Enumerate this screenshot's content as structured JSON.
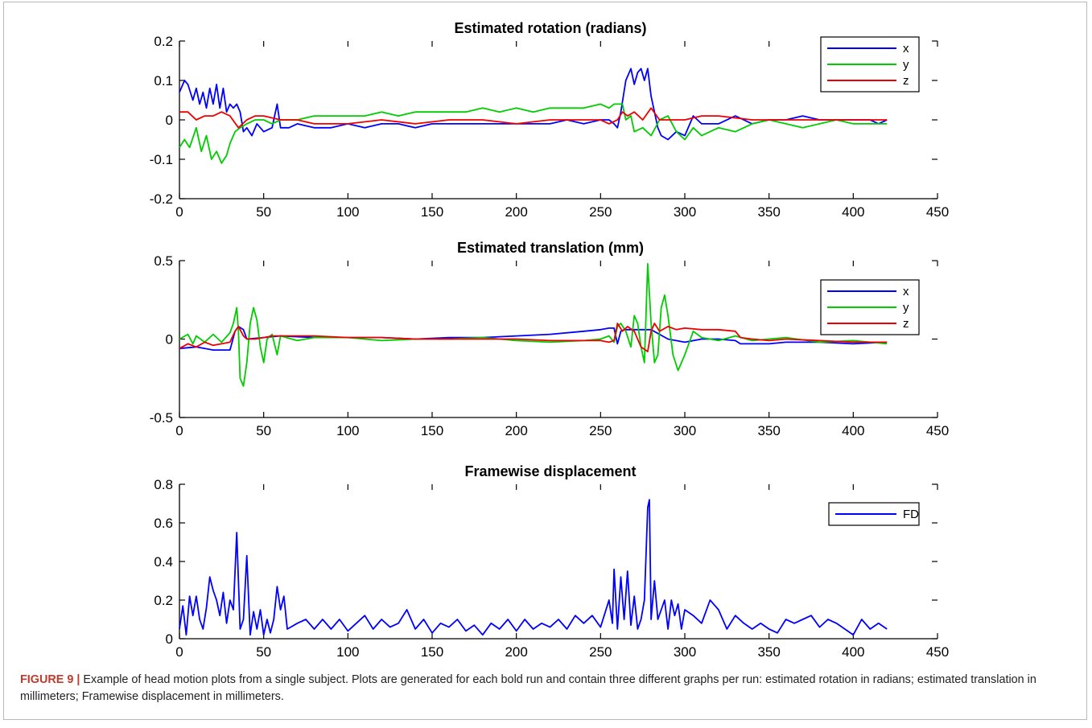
{
  "chart_data": [
    {
      "type": "line",
      "title": "Estimated rotation (radians)",
      "xlabel": "",
      "ylabel": "",
      "xlim": [
        0,
        450
      ],
      "ylim": [
        -0.2,
        0.2
      ],
      "xticks": [
        0,
        50,
        100,
        150,
        200,
        250,
        300,
        350,
        400,
        450
      ],
      "yticks": [
        -0.2,
        -0.1,
        0,
        0.1,
        0.2
      ],
      "ytick_labels": [
        "-0.2",
        "-0.1",
        "0",
        "0.1",
        "0.2"
      ],
      "legend_position": "top-right",
      "grid": false,
      "series": [
        {
          "name": "x",
          "color": "#0000ff",
          "x": [
            0,
            3,
            5,
            8,
            10,
            12,
            14,
            16,
            18,
            20,
            22,
            24,
            26,
            28,
            30,
            32,
            34,
            36,
            38,
            40,
            43,
            46,
            50,
            55,
            58,
            60,
            65,
            70,
            80,
            90,
            100,
            110,
            120,
            130,
            140,
            150,
            160,
            170,
            180,
            190,
            200,
            210,
            220,
            230,
            240,
            250,
            255,
            258,
            260,
            262,
            265,
            268,
            270,
            272,
            274,
            276,
            278,
            280,
            282,
            284,
            286,
            290,
            295,
            300,
            305,
            310,
            320,
            330,
            340,
            350,
            360,
            370,
            380,
            390,
            400,
            410,
            415,
            420
          ],
          "y": [
            0.07,
            0.1,
            0.09,
            0.05,
            0.08,
            0.04,
            0.07,
            0.03,
            0.08,
            0.04,
            0.09,
            0.03,
            0.08,
            0.02,
            0.04,
            0.03,
            0.04,
            0.02,
            -0.03,
            -0.02,
            -0.04,
            -0.01,
            -0.03,
            -0.02,
            0.04,
            -0.02,
            -0.02,
            -0.01,
            -0.02,
            -0.02,
            -0.01,
            -0.02,
            -0.01,
            -0.01,
            -0.02,
            -0.01,
            -0.01,
            -0.01,
            -0.01,
            -0.01,
            -0.01,
            -0.01,
            -0.01,
            0,
            -0.01,
            0,
            0,
            -0.01,
            -0.02,
            0.02,
            0.1,
            0.13,
            0.09,
            0.12,
            0.13,
            0.1,
            0.13,
            0.06,
            0.02,
            -0.02,
            -0.04,
            -0.05,
            -0.03,
            -0.04,
            0.01,
            -0.01,
            -0.01,
            0.01,
            -0.01,
            0,
            0,
            0.01,
            0,
            0,
            0,
            0,
            -0.01,
            0
          ]
        },
        {
          "name": "y",
          "color": "#00cc00",
          "x": [
            0,
            3,
            6,
            10,
            13,
            16,
            19,
            22,
            25,
            28,
            30,
            33,
            36,
            40,
            45,
            50,
            55,
            60,
            65,
            70,
            80,
            90,
            100,
            110,
            120,
            130,
            140,
            150,
            160,
            170,
            180,
            190,
            200,
            210,
            220,
            230,
            240,
            250,
            255,
            258,
            260,
            263,
            265,
            268,
            270,
            275,
            280,
            285,
            290,
            295,
            300,
            305,
            310,
            320,
            330,
            340,
            350,
            360,
            370,
            380,
            390,
            400,
            410,
            415,
            420
          ],
          "y": [
            -0.07,
            -0.05,
            -0.07,
            -0.02,
            -0.08,
            -0.04,
            -0.1,
            -0.08,
            -0.11,
            -0.09,
            -0.06,
            -0.03,
            -0.02,
            -0.01,
            0,
            0,
            -0.01,
            0,
            0,
            0,
            0.01,
            0.01,
            0.01,
            0.01,
            0.02,
            0.01,
            0.02,
            0.02,
            0.02,
            0.02,
            0.03,
            0.02,
            0.03,
            0.02,
            0.03,
            0.03,
            0.03,
            0.04,
            0.03,
            0.04,
            0.04,
            0.04,
            0,
            0.01,
            -0.03,
            -0.02,
            -0.04,
            0,
            0.01,
            -0.03,
            -0.05,
            -0.02,
            -0.04,
            -0.02,
            -0.03,
            -0.01,
            0,
            -0.01,
            -0.02,
            -0.01,
            0,
            -0.01,
            -0.01,
            -0.01,
            -0.01
          ]
        },
        {
          "name": "z",
          "color": "#ee0000",
          "x": [
            0,
            5,
            10,
            15,
            20,
            25,
            30,
            35,
            40,
            45,
            50,
            60,
            70,
            80,
            100,
            120,
            140,
            160,
            180,
            200,
            220,
            240,
            250,
            255,
            260,
            263,
            266,
            270,
            275,
            280,
            285,
            290,
            300,
            310,
            320,
            340,
            360,
            380,
            400,
            420
          ],
          "y": [
            0.02,
            0.02,
            0,
            0.01,
            0.01,
            0.02,
            0.01,
            -0.02,
            0,
            0.01,
            0.01,
            0,
            0,
            -0.01,
            -0.01,
            0,
            -0.01,
            0,
            0,
            -0.01,
            0,
            0,
            0,
            -0.01,
            0,
            0.02,
            0.01,
            0.02,
            0,
            0.03,
            0,
            0,
            0,
            0.01,
            0.01,
            0,
            0,
            0,
            0,
            0
          ]
        }
      ]
    },
    {
      "type": "line",
      "title": "Estimated translation (mm)",
      "xlabel": "",
      "ylabel": "",
      "xlim": [
        0,
        450
      ],
      "ylim": [
        -0.5,
        0.5
      ],
      "xticks": [
        0,
        50,
        100,
        150,
        200,
        250,
        300,
        350,
        400,
        450
      ],
      "yticks": [
        -0.5,
        0,
        0.5
      ],
      "ytick_labels": [
        "-0.5",
        "0",
        "0.5"
      ],
      "legend_position": "top-right",
      "grid": false,
      "series": [
        {
          "name": "x",
          "color": "#0000ff",
          "x": [
            0,
            10,
            20,
            30,
            33,
            35,
            38,
            40,
            50,
            60,
            80,
            100,
            120,
            140,
            160,
            180,
            200,
            220,
            240,
            250,
            255,
            258,
            260,
            262,
            264,
            266,
            270,
            280,
            290,
            300,
            310,
            320,
            330,
            333,
            340,
            350,
            360,
            380,
            400,
            420
          ],
          "y": [
            -0.06,
            -0.05,
            -0.07,
            -0.07,
            0.05,
            0.08,
            0.06,
            0,
            0.01,
            0.02,
            0.01,
            0.01,
            0.01,
            0,
            0.01,
            0.01,
            0.02,
            0.03,
            0.05,
            0.06,
            0.07,
            0.07,
            -0.03,
            0.05,
            0.06,
            0.06,
            0.06,
            0.06,
            0,
            -0.02,
            0,
            0,
            -0.01,
            -0.03,
            -0.03,
            -0.03,
            -0.02,
            -0.02,
            -0.03,
            -0.02
          ]
        },
        {
          "name": "y",
          "color": "#00cc00",
          "x": [
            0,
            5,
            8,
            10,
            15,
            20,
            25,
            30,
            32,
            34,
            35,
            36,
            38,
            40,
            42,
            44,
            46,
            48,
            50,
            52,
            55,
            58,
            60,
            70,
            80,
            100,
            120,
            140,
            160,
            180,
            200,
            220,
            240,
            250,
            255,
            258,
            260,
            262,
            265,
            268,
            270,
            272,
            274,
            276,
            278,
            280,
            282,
            284,
            286,
            288,
            290,
            293,
            296,
            300,
            305,
            310,
            320,
            330,
            340,
            350,
            360,
            380,
            400,
            420
          ],
          "y": [
            0,
            0.03,
            -0.03,
            0.02,
            -0.02,
            0.03,
            -0.02,
            0.04,
            0.1,
            0.2,
            0.05,
            -0.25,
            -0.3,
            -0.15,
            0.1,
            0.2,
            0.12,
            -0.05,
            -0.15,
            0,
            0.03,
            -0.1,
            0.02,
            -0.01,
            0.01,
            0.01,
            -0.01,
            0,
            0,
            0.01,
            -0.01,
            -0.02,
            -0.01,
            0,
            0.02,
            -0.02,
            0.08,
            0.1,
            0.05,
            -0.05,
            0.15,
            0.1,
            -0.05,
            -0.15,
            0.48,
            0.1,
            -0.15,
            -0.1,
            0.2,
            0.28,
            0.15,
            -0.1,
            -0.2,
            -0.1,
            0.05,
            0.01,
            -0.01,
            0.02,
            -0.01,
            0,
            0.01,
            -0.02,
            -0.01,
            -0.03
          ]
        },
        {
          "name": "z",
          "color": "#ee0000",
          "x": [
            0,
            5,
            10,
            15,
            20,
            25,
            30,
            33,
            35,
            38,
            40,
            45,
            50,
            55,
            60,
            70,
            80,
            100,
            120,
            140,
            160,
            180,
            200,
            220,
            240,
            250,
            255,
            258,
            260,
            263,
            266,
            270,
            274,
            278,
            280,
            282,
            285,
            290,
            295,
            300,
            310,
            320,
            330,
            333,
            340,
            350,
            360,
            380,
            400,
            420
          ],
          "y": [
            -0.06,
            -0.03,
            -0.05,
            -0.02,
            -0.04,
            -0.03,
            -0.02,
            0.05,
            0.08,
            0.02,
            0,
            0,
            0.01,
            0.02,
            0.02,
            0.02,
            0.02,
            0.01,
            0.01,
            0,
            0,
            0,
            0,
            -0.01,
            -0.01,
            -0.01,
            -0.02,
            -0.01,
            0.1,
            0.05,
            0.08,
            0.05,
            -0.05,
            -0.08,
            0.05,
            0.1,
            0.05,
            0.08,
            0.06,
            0.07,
            0.06,
            0.06,
            0.05,
            0.01,
            0,
            -0.01,
            0,
            -0.01,
            -0.02,
            -0.02
          ]
        }
      ]
    },
    {
      "type": "line",
      "title": "Framewise displacement",
      "xlabel": "",
      "ylabel": "",
      "xlim": [
        0,
        450
      ],
      "ylim": [
        0,
        0.8
      ],
      "xticks": [
        0,
        50,
        100,
        150,
        200,
        250,
        300,
        350,
        400,
        450
      ],
      "yticks": [
        0,
        0.2,
        0.4,
        0.6,
        0.8
      ],
      "ytick_labels": [
        "0",
        "0.2",
        "0.4",
        "0.6",
        "0.8"
      ],
      "legend_position": "top-right",
      "grid": false,
      "series": [
        {
          "name": "FD",
          "color": "#0000ff",
          "x": [
            0,
            2,
            4,
            6,
            8,
            10,
            12,
            14,
            16,
            18,
            20,
            22,
            24,
            26,
            28,
            30,
            32,
            34,
            36,
            38,
            40,
            42,
            44,
            46,
            48,
            50,
            52,
            54,
            56,
            58,
            60,
            62,
            64,
            66,
            70,
            75,
            80,
            85,
            90,
            95,
            100,
            105,
            110,
            115,
            120,
            125,
            130,
            135,
            140,
            145,
            150,
            155,
            160,
            165,
            170,
            175,
            180,
            185,
            190,
            195,
            200,
            205,
            210,
            215,
            220,
            225,
            230,
            235,
            240,
            245,
            250,
            255,
            257,
            258,
            260,
            262,
            264,
            266,
            268,
            270,
            272,
            274,
            276,
            278,
            279,
            280,
            282,
            284,
            286,
            288,
            290,
            292,
            294,
            296,
            298,
            300,
            305,
            310,
            315,
            320,
            325,
            330,
            335,
            340,
            345,
            350,
            355,
            360,
            365,
            370,
            375,
            380,
            385,
            390,
            395,
            400,
            405,
            410,
            415,
            420
          ],
          "y": [
            0.05,
            0.17,
            0.02,
            0.22,
            0.12,
            0.22,
            0.1,
            0.05,
            0.16,
            0.32,
            0.25,
            0.2,
            0.12,
            0.24,
            0.08,
            0.2,
            0.15,
            0.55,
            0.05,
            0.1,
            0.43,
            0.02,
            0.14,
            0.05,
            0.15,
            0.02,
            0.1,
            0.03,
            0.1,
            0.27,
            0.15,
            0.22,
            0.05,
            0.06,
            0.08,
            0.1,
            0.05,
            0.1,
            0.05,
            0.1,
            0.04,
            0.08,
            0.12,
            0.05,
            0.1,
            0.06,
            0.08,
            0.15,
            0.05,
            0.1,
            0.03,
            0.08,
            0.06,
            0.1,
            0.04,
            0.07,
            0.02,
            0.08,
            0.05,
            0.1,
            0.04,
            0.1,
            0.05,
            0.08,
            0.06,
            0.1,
            0.05,
            0.12,
            0.08,
            0.12,
            0.06,
            0.2,
            0.08,
            0.36,
            0.05,
            0.32,
            0.1,
            0.35,
            0.07,
            0.22,
            0.05,
            0.1,
            0.2,
            0.68,
            0.72,
            0.1,
            0.3,
            0.1,
            0.15,
            0.2,
            0.05,
            0.2,
            0.12,
            0.18,
            0.05,
            0.15,
            0.12,
            0.08,
            0.2,
            0.15,
            0.05,
            0.12,
            0.08,
            0.05,
            0.08,
            0.05,
            0.03,
            0.1,
            0.08,
            0.1,
            0.12,
            0.06,
            0.1,
            0.08,
            0.05,
            0.02,
            0.1,
            0.05,
            0.08,
            0.05
          ]
        }
      ]
    }
  ],
  "caption": {
    "label": "FIGURE 9 |",
    "text": "Example of head motion plots from a single subject. Plots are generated for each bold run and contain three different graphs per run: estimated rotation in radians; estimated translation in millimeters; Framewise displacement in millimeters."
  }
}
